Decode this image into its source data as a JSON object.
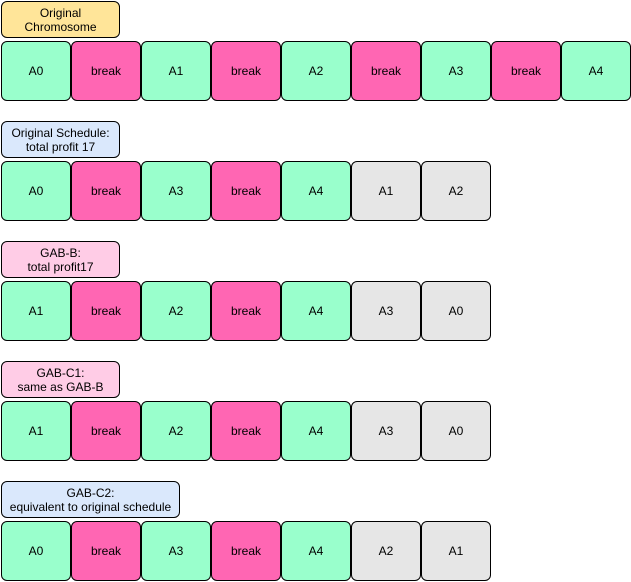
{
  "colors": {
    "activity": "#99ffcc",
    "break": "#ff66b3",
    "unscheduled": "#e6e6e6",
    "label_yellow": "#ffe599",
    "label_blue": "#dae8fc",
    "label_pink": "#ffcce6"
  },
  "sections": [
    {
      "id": "original-chromosome",
      "label": "Original Chromosome",
      "label_color": "#ffe599",
      "cells": [
        {
          "text": "A0",
          "kind": "activity"
        },
        {
          "text": "break",
          "kind": "break"
        },
        {
          "text": "A1",
          "kind": "activity"
        },
        {
          "text": "break",
          "kind": "break"
        },
        {
          "text": "A2",
          "kind": "activity"
        },
        {
          "text": "break",
          "kind": "break"
        },
        {
          "text": "A3",
          "kind": "activity"
        },
        {
          "text": "break",
          "kind": "break"
        },
        {
          "text": "A4",
          "kind": "activity"
        }
      ]
    },
    {
      "id": "original-schedule",
      "label": "Original Schedule:\ntotal profit 17",
      "label_color": "#dae8fc",
      "cells": [
        {
          "text": "A0",
          "kind": "activity"
        },
        {
          "text": "break",
          "kind": "break"
        },
        {
          "text": "A3",
          "kind": "activity"
        },
        {
          "text": "break",
          "kind": "break"
        },
        {
          "text": "A4",
          "kind": "activity"
        },
        {
          "text": "A1",
          "kind": "unscheduled"
        },
        {
          "text": "A2",
          "kind": "unscheduled"
        }
      ]
    },
    {
      "id": "gab-b",
      "label": "GAB-B:\ntotal profit17",
      "label_color": "#ffcce6",
      "cells": [
        {
          "text": "A1",
          "kind": "activity"
        },
        {
          "text": "break",
          "kind": "break"
        },
        {
          "text": "A2",
          "kind": "activity"
        },
        {
          "text": "break",
          "kind": "break"
        },
        {
          "text": "A4",
          "kind": "activity"
        },
        {
          "text": "A3",
          "kind": "unscheduled"
        },
        {
          "text": "A0",
          "kind": "unscheduled"
        }
      ]
    },
    {
      "id": "gab-c1",
      "label": "GAB-C1:\nsame as GAB-B",
      "label_color": "#ffcce6",
      "cells": [
        {
          "text": "A1",
          "kind": "activity"
        },
        {
          "text": "break",
          "kind": "break"
        },
        {
          "text": "A2",
          "kind": "activity"
        },
        {
          "text": "break",
          "kind": "break"
        },
        {
          "text": "A4",
          "kind": "activity"
        },
        {
          "text": "A3",
          "kind": "unscheduled"
        },
        {
          "text": "A0",
          "kind": "unscheduled"
        }
      ]
    },
    {
      "id": "gab-c2",
      "label": "GAB-C2:\nequivalent to original schedule",
      "label_color": "#dae8fc",
      "cells": [
        {
          "text": "A0",
          "kind": "activity"
        },
        {
          "text": "break",
          "kind": "break"
        },
        {
          "text": "A3",
          "kind": "activity"
        },
        {
          "text": "break",
          "kind": "break"
        },
        {
          "text": "A4",
          "kind": "activity"
        },
        {
          "text": "A2",
          "kind": "unscheduled"
        },
        {
          "text": "A1",
          "kind": "unscheduled"
        }
      ]
    }
  ]
}
